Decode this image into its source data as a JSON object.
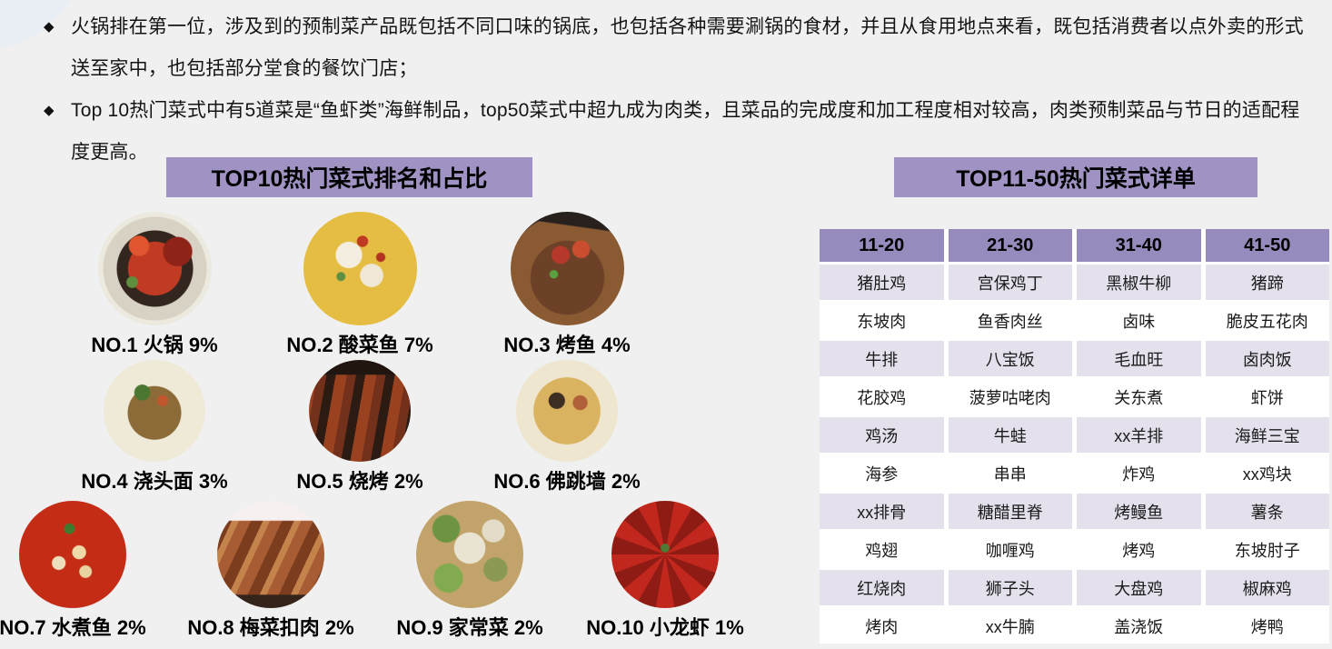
{
  "bullets": [
    {
      "marker": "◆",
      "text": "火锅排在第一位，涉及到的预制菜产品既包括不同口味的锅底，也包括各种需要涮锅的食材，并且从食用地点来看，既包括消费者以点外卖的形式送至家中，也包括部分堂食的餐饮门店；"
    },
    {
      "marker": "◆",
      "text": "Top 10热门菜式中有5道菜是“鱼虾类”海鲜制品，top50菜式中超九成为肉类，且菜品的完成度和加工程度相对较高，肉类预制菜品与节日的适配程度更高。"
    }
  ],
  "left_panel": {
    "title": "TOP10热门菜式排名和占比",
    "dishes": [
      {
        "label": "NO.1 火锅 9%",
        "photo": "background: radial-gradient(circle at 70% 35%, #8e2318 0 13%, rgba(0,0,0,0) 14%), radial-gradient(circle at 36% 30%, #e0552f 0 9%, rgba(0,0,0,0) 10%), radial-gradient(circle at 30% 62%, #5f8f3c 0 5%, rgba(0,0,0,0) 6%), radial-gradient(circle at 50% 50%, #c03a24 0 33%, #32261e 34% 47%, #d8d2c4 48% 64%, #eceadf 65% 100%)"
      },
      {
        "label": "NO.2 酸菜鱼 7%",
        "photo": "background: radial-gradient(circle at 40% 38%, #f4eee1 0 13%, rgba(0,0,0,0) 14%), radial-gradient(circle at 60% 56%, #f0e8d7 0 12%, rgba(0,0,0,0) 13%), radial-gradient(circle at 52% 26%, #bf3a22 0 5%, rgba(0,0,0,0) 6%), radial-gradient(circle at 68% 40%, #b33220 0 4%, rgba(0,0,0,0) 5%), radial-gradient(circle at 33% 57%, #5d9040 0 4%, rgba(0,0,0,0) 5%), radial-gradient(circle at 50% 50%, #e5bd42 0 72%, #d2a72e 100%)"
      },
      {
        "label": "NO.3 烤鱼 4%",
        "photo": "background: linear-gradient(188deg, #27201d 0 16%, rgba(0,0,0,0) 17%), radial-gradient(circle at 44% 38%, #b5382a 0 9%, rgba(0,0,0,0) 10%), radial-gradient(circle at 62% 33%, #c94d2e 0 8%, rgba(0,0,0,0) 9%), radial-gradient(circle at 38% 55%, #59a03f 0 4%, rgba(0,0,0,0) 5%), radial-gradient(circle at 50% 58%, #6d4128 0 42%, #8a5a33 43% 72%, #43302b 73% 100%)"
      },
      {
        "label": "NO.4 浇头面 3%",
        "photo": "background: radial-gradient(circle at 38% 32%, #49772f 0 8%, rgba(0,0,0,0) 9%), radial-gradient(circle at 58% 40%, #c2572f 0 6%, rgba(0,0,0,0) 7%), radial-gradient(circle at 50% 52%, #8d6b38 0 36%, #efe9d8 37% 80%, #a97b43 81% 100%)"
      },
      {
        "label": "NO.5 烧烤 2%",
        "photo": "background: linear-gradient(180deg, #20150f 0 14%, rgba(0,0,0,0) 15%), repeating-linear-gradient(100deg, #9a421f 0 12px, #73301a 12px 22px, #2c1b12 22px 32px)"
      },
      {
        "label": "NO.6 佛跳墙 2%",
        "photo": "background: radial-gradient(circle at 40% 40%, #3c2e23 0 9%, rgba(0,0,0,0) 10%), radial-gradient(circle at 63% 42%, #b06038 0 8%, rgba(0,0,0,0) 9%), radial-gradient(circle at 50% 50%, #d9b35f 0 46%, #efe6d0 47% 76%, #8a7a55 77% 100%)"
      },
      {
        "label": "NO.7 水煮鱼 2%",
        "photo": "background: radial-gradient(circle at 47% 26%, #3f7a2e 0 5%, rgba(0,0,0,0) 6%), radial-gradient(circle at 56% 48%, #f0d9a8 0 8%, rgba(0,0,0,0) 9%), radial-gradient(circle at 37% 58%, #eedfbc 0 7%, rgba(0,0,0,0) 8%), radial-gradient(circle at 62% 66%, #e8d2a0 0 6%, rgba(0,0,0,0) 7%), radial-gradient(circle at 50% 50%, #c52c16 0 72%, #94200f 100%)"
      },
      {
        "label": "NO.8 梅菜扣肉 2%",
        "photo": "background: linear-gradient(180deg, #f7f0f1 0 18%, rgba(0,0,0,0) 19%), linear-gradient(0deg, #35241a 0 12%, rgba(0,0,0,0) 13%), repeating-linear-gradient(115deg, #a85c33 0 12px, #7c3d1f 12px 24px, #c5834c 24px 31px)"
      },
      {
        "label": "NO.9 家常菜 2%",
        "photo": "background: radial-gradient(circle at 50% 44%, #e9e4d2 0 19%, rgba(0,0,0,0) 20%), radial-gradient(circle at 28% 26%, #6d9441 0 12%, rgba(0,0,0,0) 13%), radial-gradient(circle at 30% 72%, #82aa4e 0 13%, rgba(0,0,0,0) 14%), radial-gradient(circle at 74% 64%, #8a9a55 0 11%, rgba(0,0,0,0) 12%), radial-gradient(circle at 72% 28%, #e2dcc8 0 10%, rgba(0,0,0,0) 11%), radial-gradient(circle at 50% 50%, #c2a36b 0 100%)"
      },
      {
        "label": "NO.10 小龙虾 1%",
        "photo": "background: radial-gradient(circle at 50% 44%, #4f7a35 0 5%, rgba(0,0,0,0) 6%), radial-gradient(circle at 50% 50%, rgba(0,0,0,0) 0 72%, #342e2c 73% 100%), repeating-conic-gradient(from 10deg at 50% 50%, #c1271d 0 20deg, #8e1c14 20deg 40deg)"
      }
    ]
  },
  "right_panel": {
    "title": "TOP11-50热门菜式详单",
    "table": {
      "headers": [
        "11-20",
        "21-30",
        "31-40",
        "41-50"
      ],
      "rows": [
        [
          "猪肚鸡",
          "宫保鸡丁",
          "黑椒牛柳",
          "猪蹄"
        ],
        [
          "东坡肉",
          "鱼香肉丝",
          "卤味",
          "脆皮五花肉"
        ],
        [
          "牛排",
          "八宝饭",
          "毛血旺",
          "卤肉饭"
        ],
        [
          "花胶鸡",
          "菠萝咕咾肉",
          "关东煮",
          "虾饼"
        ],
        [
          "鸡汤",
          "牛蛙",
          "xx羊排",
          "海鲜三宝"
        ],
        [
          "海参",
          "串串",
          "炸鸡",
          "xx鸡块"
        ],
        [
          "xx排骨",
          "糖醋里脊",
          "烤鳗鱼",
          "薯条"
        ],
        [
          "鸡翅",
          "咖喱鸡",
          "烤鸡",
          "东坡肘子"
        ],
        [
          "红烧肉",
          "狮子头",
          "大盘鸡",
          "椒麻鸡"
        ],
        [
          "烤肉",
          "xx牛腩",
          "盖浇饭",
          "烤鸭"
        ]
      ]
    }
  },
  "colors": {
    "background": "#f0f0f0",
    "title_bar_purple": "#a192c4",
    "table_header_purple": "#978abc",
    "table_row_shade": "#e4e1ed",
    "text": "#141414"
  }
}
